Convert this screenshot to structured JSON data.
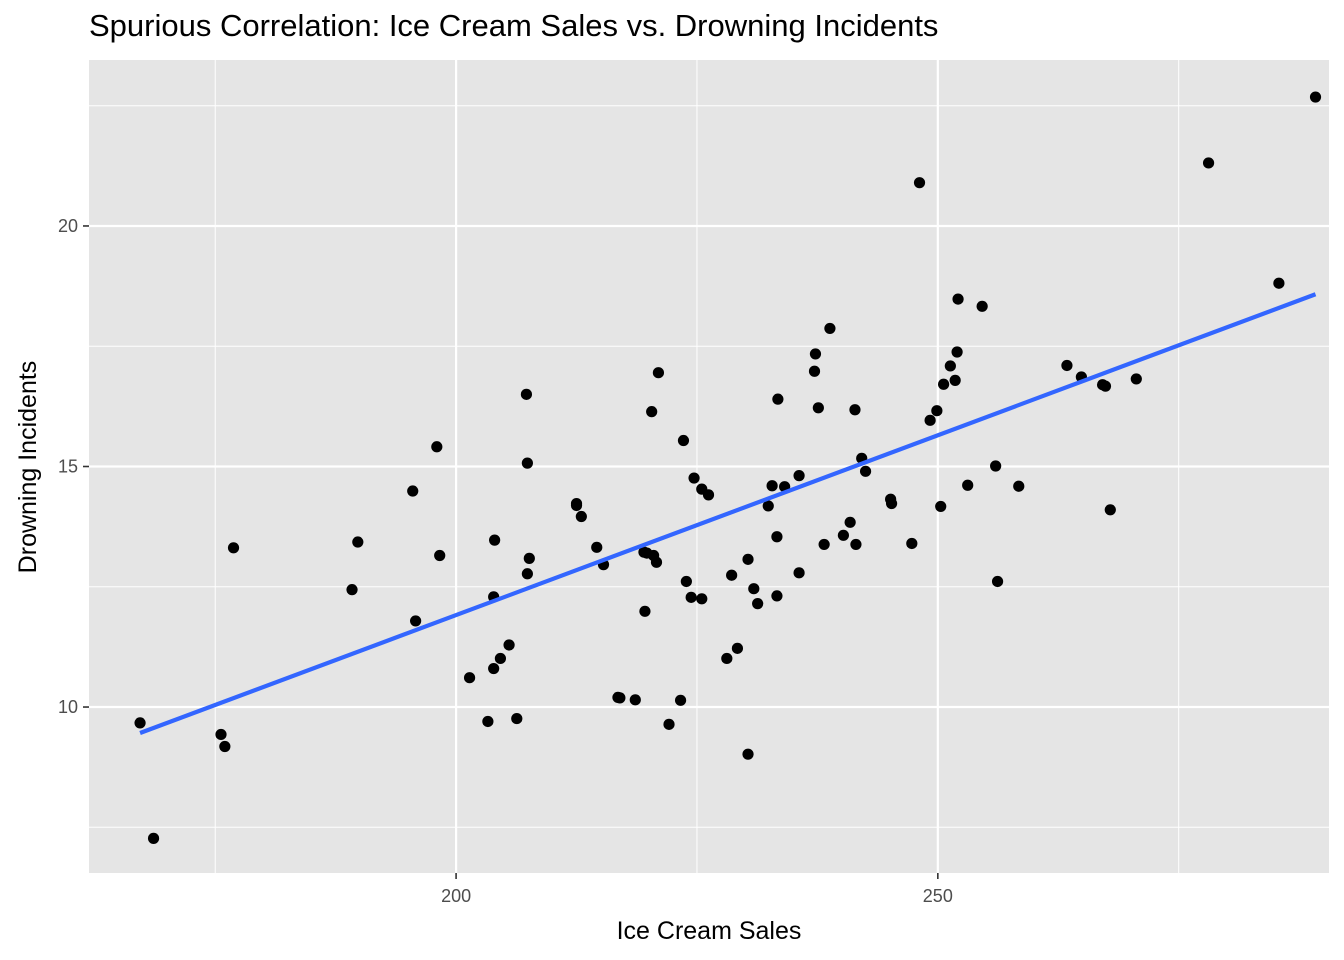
{
  "chart_data": {
    "type": "scatter",
    "title": "Spurious Correlation: Ice Cream Sales vs. Drowning Incidents",
    "xlabel": "Ice Cream Sales",
    "ylabel": "Drowning Incidents",
    "xlim": [
      161.9,
      290.6
    ],
    "ylim": [
      6.55,
      23.45
    ],
    "x_ticks": [
      200,
      250
    ],
    "y_ticks": [
      10,
      15,
      20
    ],
    "x_minor_ticks": [
      175,
      225,
      275
    ],
    "y_minor_ticks": [
      7.5,
      12.5,
      17.5,
      22.5
    ],
    "grid": true,
    "colors": {
      "panel": "#e5e5e5",
      "grid": "#ffffff",
      "points": "#000000",
      "fit_line": "#3366ff"
    },
    "series": [
      {
        "marker": "point",
        "points": [
          [
            167.2,
            9.67
          ],
          [
            168.6,
            7.27
          ],
          [
            175.6,
            9.43
          ],
          [
            176.0,
            9.18
          ],
          [
            176.9,
            13.31
          ],
          [
            189.2,
            12.44
          ],
          [
            189.8,
            13.43
          ],
          [
            195.5,
            14.49
          ],
          [
            195.8,
            11.79
          ],
          [
            198.0,
            15.41
          ],
          [
            198.3,
            13.15
          ],
          [
            201.4,
            10.61
          ],
          [
            203.3,
            9.7
          ],
          [
            203.9,
            10.8
          ],
          [
            203.9,
            12.29
          ],
          [
            204.0,
            13.47
          ],
          [
            204.6,
            11.01
          ],
          [
            205.5,
            11.29
          ],
          [
            206.3,
            9.76
          ],
          [
            207.3,
            16.5
          ],
          [
            207.4,
            15.07
          ],
          [
            207.4,
            12.77
          ],
          [
            207.6,
            13.09
          ],
          [
            212.5,
            14.23
          ],
          [
            212.5,
            14.19
          ],
          [
            213.0,
            13.96
          ],
          [
            214.6,
            13.32
          ],
          [
            215.3,
            12.96
          ],
          [
            216.8,
            10.2
          ],
          [
            217.0,
            10.19
          ],
          [
            218.6,
            10.15
          ],
          [
            219.5,
            13.22
          ],
          [
            219.6,
            11.99
          ],
          [
            219.8,
            13.2
          ],
          [
            220.3,
            16.14
          ],
          [
            220.5,
            13.15
          ],
          [
            220.8,
            13.01
          ],
          [
            221.0,
            16.95
          ],
          [
            222.1,
            9.64
          ],
          [
            223.3,
            10.14
          ],
          [
            223.6,
            15.54
          ],
          [
            223.9,
            12.61
          ],
          [
            224.4,
            12.28
          ],
          [
            224.7,
            14.76
          ],
          [
            225.5,
            12.25
          ],
          [
            225.5,
            14.53
          ],
          [
            226.2,
            14.41
          ],
          [
            228.1,
            11.01
          ],
          [
            228.6,
            12.74
          ],
          [
            229.2,
            11.22
          ],
          [
            230.3,
            13.07
          ],
          [
            230.3,
            9.02
          ],
          [
            230.9,
            12.46
          ],
          [
            231.3,
            12.15
          ],
          [
            232.4,
            14.18
          ],
          [
            232.8,
            14.6
          ],
          [
            233.3,
            12.31
          ],
          [
            233.3,
            13.54
          ],
          [
            233.4,
            16.4
          ],
          [
            234.1,
            14.58
          ],
          [
            235.6,
            12.79
          ],
          [
            235.6,
            14.81
          ],
          [
            237.2,
            16.98
          ],
          [
            237.3,
            17.34
          ],
          [
            237.6,
            16.22
          ],
          [
            238.2,
            13.38
          ],
          [
            238.8,
            17.87
          ],
          [
            240.2,
            13.57
          ],
          [
            240.9,
            13.84
          ],
          [
            241.4,
            16.18
          ],
          [
            241.5,
            13.38
          ],
          [
            242.1,
            15.17
          ],
          [
            242.5,
            14.9
          ],
          [
            245.1,
            14.32
          ],
          [
            245.2,
            14.23
          ],
          [
            247.3,
            13.4
          ],
          [
            248.1,
            20.9
          ],
          [
            249.2,
            15.96
          ],
          [
            249.9,
            16.16
          ],
          [
            250.3,
            14.17
          ],
          [
            250.6,
            16.71
          ],
          [
            251.3,
            17.09
          ],
          [
            251.8,
            16.79
          ],
          [
            252.0,
            17.38
          ],
          [
            252.1,
            18.48
          ],
          [
            253.1,
            14.61
          ],
          [
            254.6,
            18.33
          ],
          [
            256.0,
            15.01
          ],
          [
            256.2,
            12.61
          ],
          [
            258.4,
            14.59
          ],
          [
            263.4,
            17.1
          ],
          [
            264.9,
            16.86
          ],
          [
            267.1,
            16.7
          ],
          [
            267.4,
            16.67
          ],
          [
            267.9,
            14.1
          ],
          [
            270.6,
            16.82
          ],
          [
            278.1,
            21.31
          ],
          [
            285.4,
            18.81
          ],
          [
            289.2,
            22.68
          ]
        ]
      }
    ],
    "fit_line": {
      "method": "lm",
      "x": [
        167.2,
        289.2
      ],
      "y": [
        9.46,
        18.58
      ]
    }
  }
}
